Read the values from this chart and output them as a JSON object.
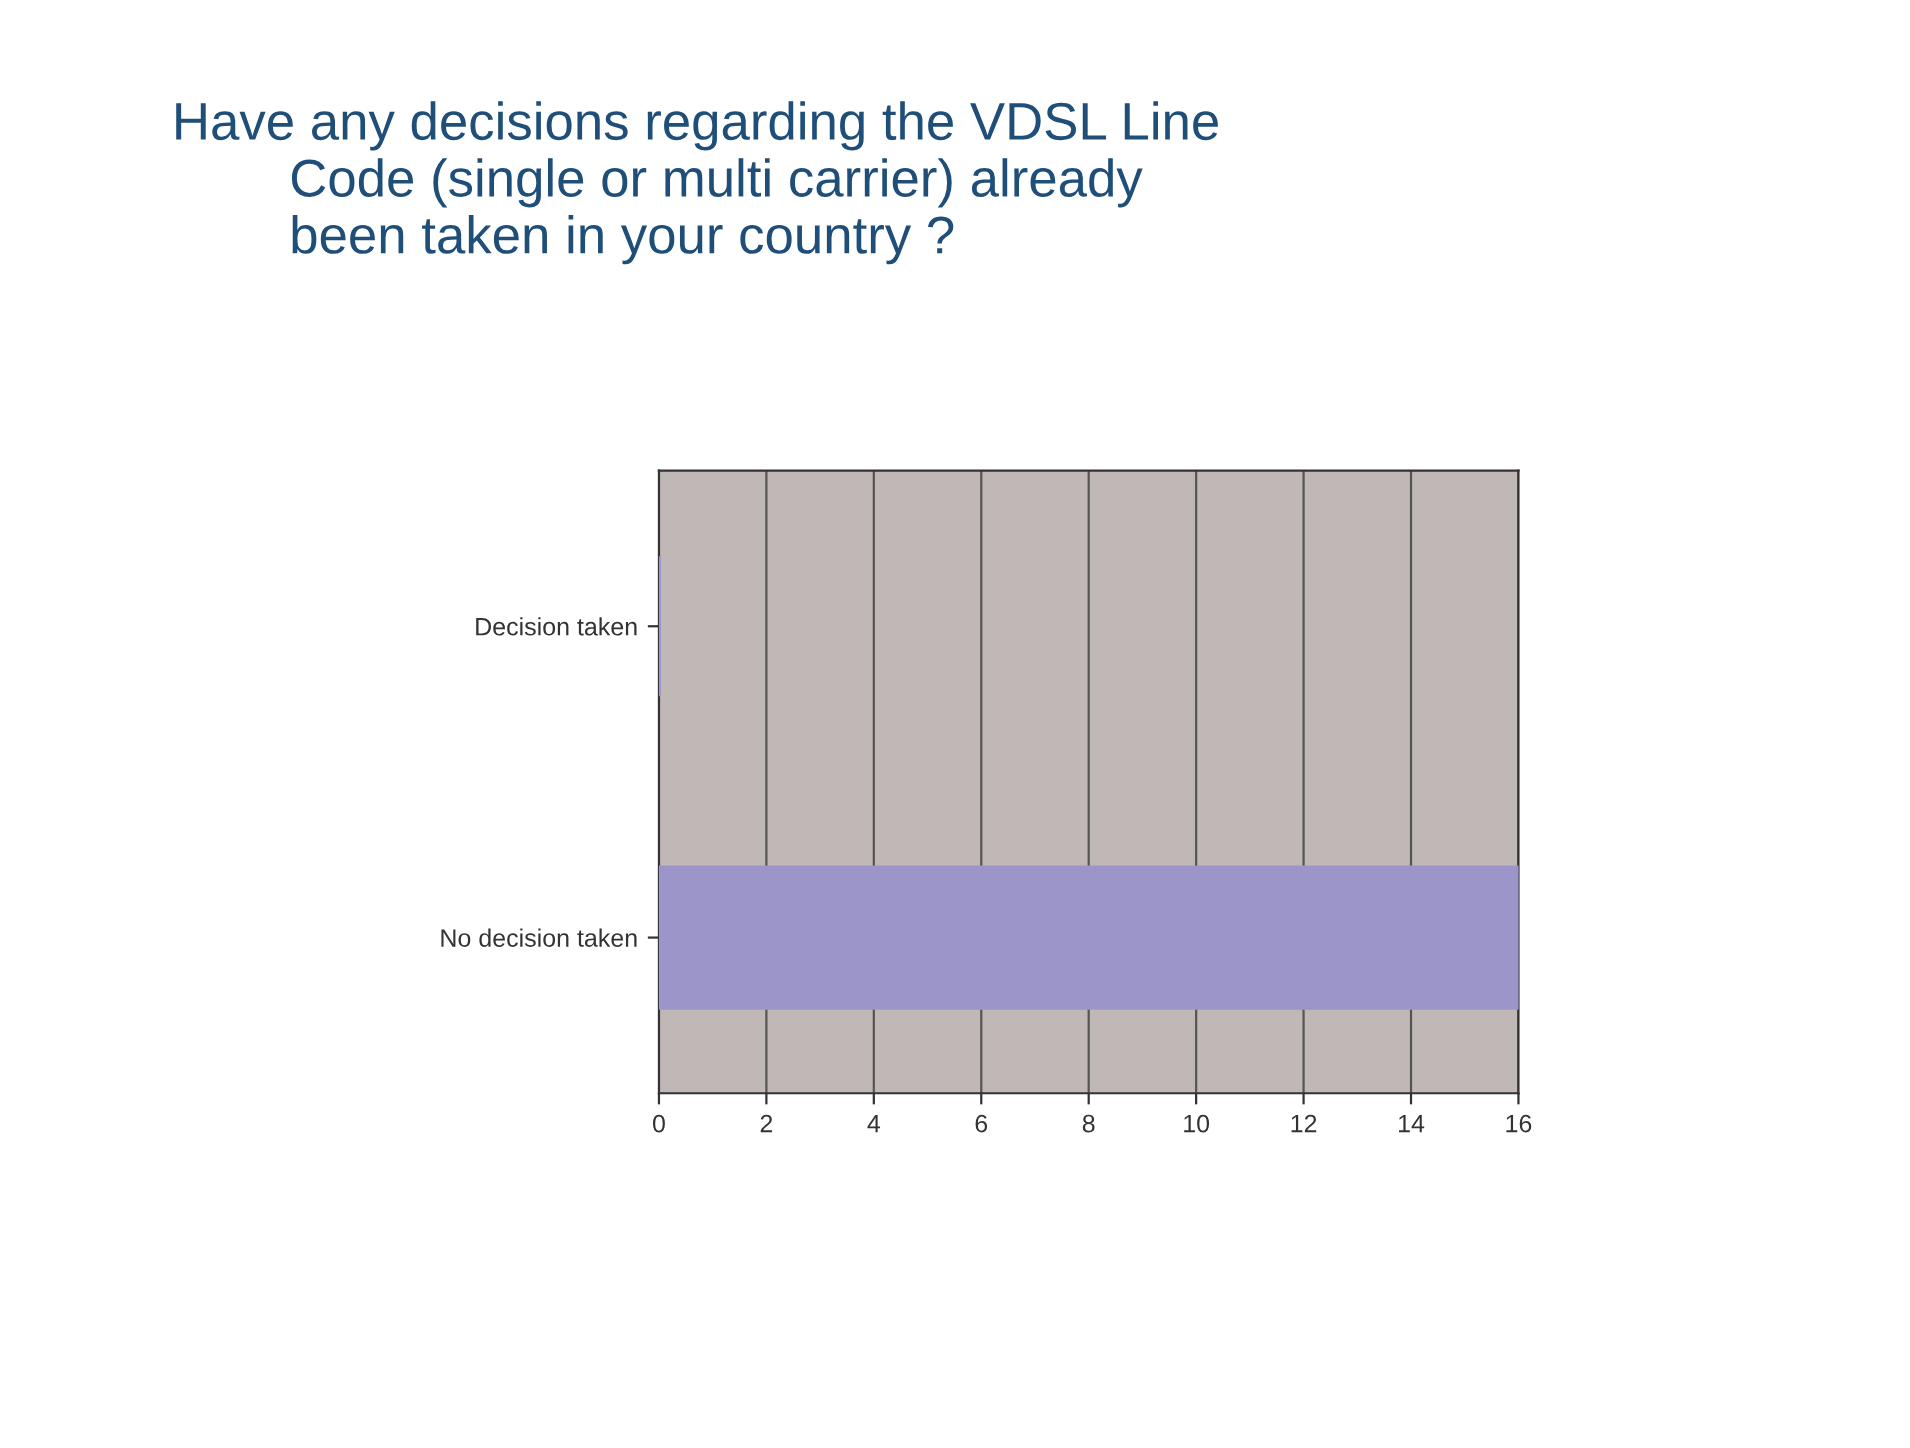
{
  "chart_data": {
    "type": "bar",
    "orientation": "horizontal",
    "title": "Have any decisions regarding the VDSL Line\n        Code (single or multi carrier) already\n        been taken in your country ?",
    "categories": [
      "Decision taken",
      "No decision taken"
    ],
    "values": [
      0,
      16
    ],
    "color": "#9b95c9",
    "xlim": [
      0,
      16
    ],
    "xticks": [
      0,
      2,
      4,
      6,
      8,
      10,
      12,
      14,
      16
    ],
    "grid": "x"
  }
}
